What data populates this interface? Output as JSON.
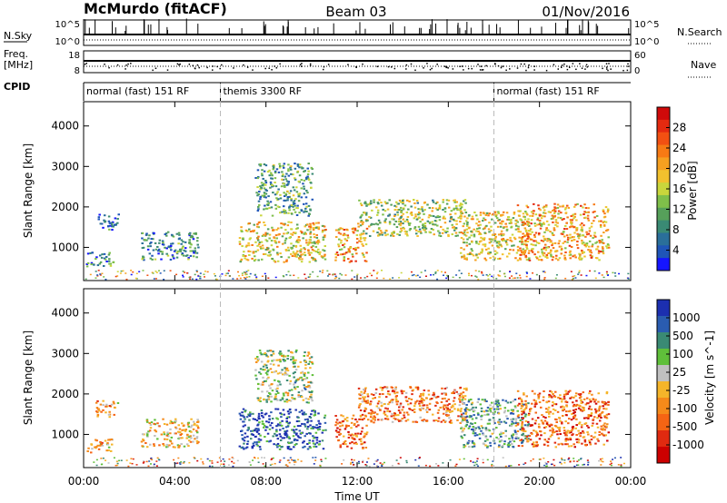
{
  "header": {
    "station": "McMurdo (fitACF)",
    "beam": "Beam 03",
    "date": "01/Nov/2016"
  },
  "summary": {
    "left_labels": [
      "N.Sky",
      "Freq.",
      "[MHz]",
      "CPID"
    ],
    "right_labels": [
      "N.Search",
      "Nave"
    ],
    "noise_ticks_left": [
      "10^5",
      "10^0"
    ],
    "noise_ticks_right": [
      "10^5",
      "10^0"
    ],
    "freq_ticks": [
      "18",
      "8"
    ],
    "nave_ticks": [
      "60",
      "0"
    ],
    "cpid_segments": [
      {
        "label": "normal (fast) 151 RF",
        "start_hour": 0,
        "end_hour": 6
      },
      {
        "label": "themis 3300 RF",
        "start_hour": 6,
        "end_hour": 18
      },
      {
        "label": "normal (fast) 151 RF",
        "start_hour": 18,
        "end_hour": 24
      }
    ]
  },
  "colors": {
    "axis": "#000000",
    "mode_divider": "#bbbbbb"
  },
  "chart_data": [
    {
      "type": "heatmap",
      "title": "",
      "xlabel": "",
      "ylabel": "Slant Range [km]",
      "xlim": [
        0,
        24
      ],
      "ylim": [
        180,
        4600
      ],
      "xticks": [
        "00:00",
        "04:00",
        "08:00",
        "12:00",
        "16:00",
        "20:00",
        "00:00"
      ],
      "yticks": [
        1000,
        2000,
        3000,
        4000
      ],
      "colorbar": {
        "label": "Power [dB]",
        "ticks": [
          "4",
          "8",
          "12",
          "16",
          "20",
          "24",
          "28"
        ],
        "levels": [
          "#1515ff",
          "#1f55b8",
          "#2a6f9a",
          "#3a8a74",
          "#56a05a",
          "#7fbf4a",
          "#c9d63c",
          "#f2c12e",
          "#f6a020",
          "#f77a14",
          "#f25012",
          "#e42a10",
          "#d00a0a"
        ]
      },
      "blobs": [
        {
          "start_hour": 0.1,
          "end_hour": 1.3,
          "range_lo_km": 550,
          "range_hi_km": 900,
          "level": 0.25
        },
        {
          "start_hour": 0.5,
          "end_hour": 1.5,
          "range_lo_km": 1450,
          "range_hi_km": 1850,
          "level": 0.2
        },
        {
          "start_hour": 2.5,
          "end_hour": 5.0,
          "range_lo_km": 700,
          "range_hi_km": 1400,
          "level": 0.25
        },
        {
          "start_hour": 6.8,
          "end_hour": 10.6,
          "range_lo_km": 650,
          "range_hi_km": 1650,
          "level": 0.55
        },
        {
          "start_hour": 7.5,
          "end_hour": 10.0,
          "range_lo_km": 1800,
          "range_hi_km": 3100,
          "level": 0.3
        },
        {
          "start_hour": 11.0,
          "end_hour": 12.4,
          "range_lo_km": 650,
          "range_hi_km": 1500,
          "level": 0.65
        },
        {
          "start_hour": 12.0,
          "end_hour": 16.8,
          "range_lo_km": 1300,
          "range_hi_km": 2200,
          "level": 0.45
        },
        {
          "start_hour": 16.5,
          "end_hour": 19.5,
          "range_lo_km": 700,
          "range_hi_km": 1900,
          "level": 0.55
        },
        {
          "start_hour": 19.0,
          "end_hour": 23.0,
          "range_lo_km": 700,
          "range_hi_km": 2100,
          "level": 0.65
        }
      ]
    },
    {
      "type": "heatmap",
      "title": "",
      "xlabel": "Time UT",
      "ylabel": "Slant Range [km]",
      "xlim": [
        0,
        24
      ],
      "ylim": [
        180,
        4600
      ],
      "xticks": [
        "00:00",
        "04:00",
        "08:00",
        "12:00",
        "16:00",
        "20:00",
        "00:00"
      ],
      "yticks": [
        1000,
        2000,
        3000,
        4000
      ],
      "colorbar": {
        "label": "Velocity [m s^-1]",
        "ticks": [
          "1000",
          "500",
          "100",
          "25",
          "-25",
          "-100",
          "-500",
          "-1000"
        ],
        "levels": [
          "#1c2fb0",
          "#2a5cb0",
          "#3a8a74",
          "#5fbf3a",
          "#c0c0c0",
          "#f5b52a",
          "#f58a1a",
          "#f56414",
          "#e02a10",
          "#cc0000"
        ]
      },
      "blobs": [
        {
          "start_hour": 0.1,
          "end_hour": 1.3,
          "range_lo_km": 550,
          "range_hi_km": 900,
          "level": 0.6
        },
        {
          "start_hour": 0.5,
          "end_hour": 1.5,
          "range_lo_km": 1450,
          "range_hi_km": 1850,
          "level": 0.6
        },
        {
          "start_hour": 2.5,
          "end_hour": 5.0,
          "range_lo_km": 700,
          "range_hi_km": 1400,
          "level": 0.55
        },
        {
          "start_hour": 6.8,
          "end_hour": 10.6,
          "range_lo_km": 650,
          "range_hi_km": 1650,
          "level": 0.1
        },
        {
          "start_hour": 7.5,
          "end_hour": 10.0,
          "range_lo_km": 1800,
          "range_hi_km": 3100,
          "level": 0.4
        },
        {
          "start_hour": 11.0,
          "end_hour": 12.4,
          "range_lo_km": 650,
          "range_hi_km": 1500,
          "level": 0.75
        },
        {
          "start_hour": 12.0,
          "end_hour": 16.8,
          "range_lo_km": 1300,
          "range_hi_km": 2200,
          "level": 0.7
        },
        {
          "start_hour": 16.5,
          "end_hour": 19.5,
          "range_lo_km": 700,
          "range_hi_km": 1900,
          "level": 0.3
        },
        {
          "start_hour": 19.0,
          "end_hour": 23.0,
          "range_lo_km": 700,
          "range_hi_km": 2100,
          "level": 0.75
        }
      ]
    }
  ]
}
